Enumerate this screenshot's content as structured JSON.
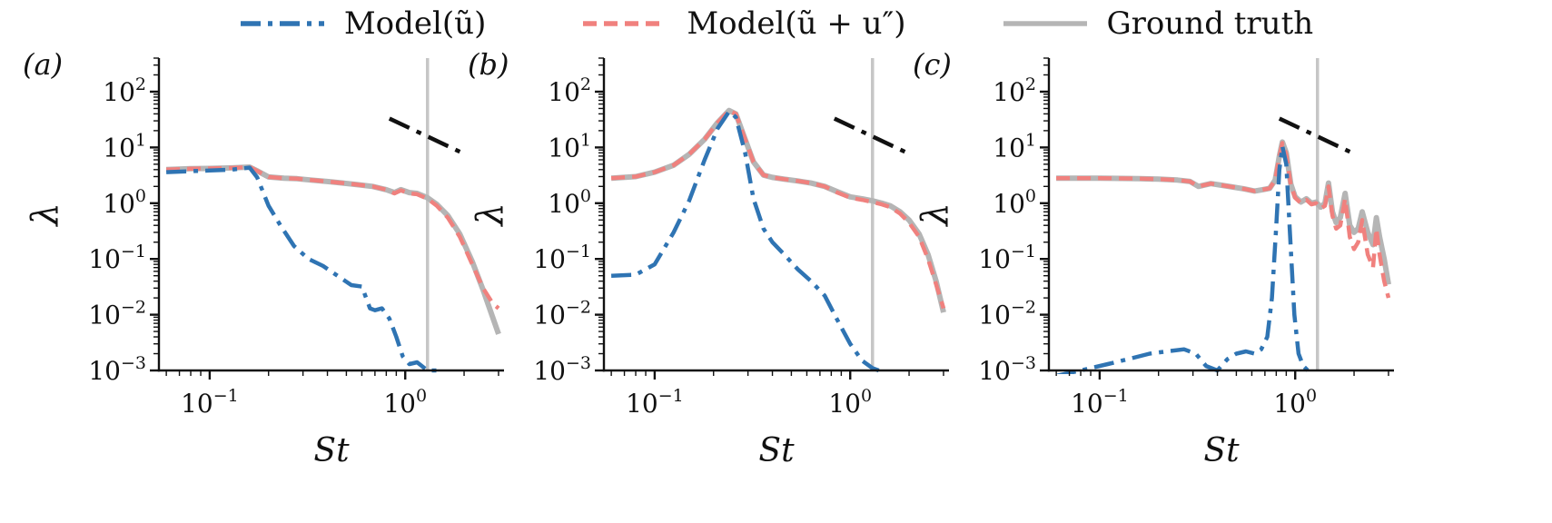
{
  "chart_data": {
    "type": "line",
    "title": "",
    "xlabel": "St",
    "ylabel": "λ",
    "x_scale": "log",
    "y_scale": "log",
    "xlim": [
      0.055,
      3.2
    ],
    "ylim": [
      0.001,
      400
    ],
    "x_major_tick_exponents": [
      -1,
      0
    ],
    "y_major_tick_exponents": [
      2,
      1,
      0,
      -1,
      -2,
      -3
    ],
    "grid": "off",
    "legend_position": "top-center",
    "vline_x": 1.3,
    "vline_color": "#c6c6c6",
    "slope_guide": {
      "x": [
        0.83,
        2.0
      ],
      "y": [
        33,
        7.7
      ],
      "color": "#111111",
      "style": "dashdot"
    },
    "legend": [
      {
        "label": "Model(ũ)",
        "color": "#2f74b3",
        "style": "dashdot"
      },
      {
        "label": "Model(ũ + u″)",
        "color": "#f0817e",
        "style": "dashed"
      },
      {
        "label": "Ground truth",
        "color": "#b5b5b5",
        "style": "solid"
      }
    ],
    "panels": [
      {
        "label": "(a)",
        "series": [
          {
            "name": "Ground truth",
            "id": "ground-truth",
            "color": "#b5b5b5",
            "style": "solid",
            "x": [
              0.06,
              0.08,
              0.1,
              0.13,
              0.16,
              0.175,
              0.2,
              0.24,
              0.28,
              0.33,
              0.4,
              0.48,
              0.57,
              0.68,
              0.8,
              0.88,
              0.95,
              1.05,
              1.15,
              1.3,
              1.45,
              1.65,
              1.9,
              2.2,
              2.5,
              2.8,
              3.0
            ],
            "y": [
              4.0,
              4.15,
              4.2,
              4.3,
              4.45,
              3.8,
              2.95,
              2.8,
              2.75,
              2.6,
              2.45,
              2.3,
              2.15,
              2.0,
              1.75,
              1.55,
              1.75,
              1.55,
              1.5,
              1.25,
              0.95,
              0.6,
              0.28,
              0.09,
              0.028,
              0.009,
              0.0045
            ]
          },
          {
            "name": "Model(ũ + u″)",
            "id": "model-full",
            "color": "#f0817e",
            "style": "dashed",
            "x": [
              0.06,
              0.08,
              0.1,
              0.13,
              0.16,
              0.175,
              0.2,
              0.24,
              0.28,
              0.33,
              0.4,
              0.48,
              0.57,
              0.68,
              0.8,
              0.88,
              0.95,
              1.05,
              1.15,
              1.3,
              1.45,
              1.65,
              1.9,
              2.2,
              2.5,
              2.8,
              3.0
            ],
            "y": [
              4.0,
              4.15,
              4.2,
              4.3,
              4.45,
              3.8,
              2.95,
              2.8,
              2.75,
              2.6,
              2.45,
              2.3,
              2.15,
              2.0,
              1.75,
              1.5,
              1.7,
              1.5,
              1.45,
              1.2,
              0.9,
              0.55,
              0.25,
              0.08,
              0.03,
              0.016,
              0.013
            ]
          },
          {
            "name": "Model(ũ)",
            "id": "model-resolved",
            "color": "#2f74b3",
            "style": "dashdot",
            "x": [
              0.06,
              0.08,
              0.1,
              0.13,
              0.16,
              0.175,
              0.2,
              0.23,
              0.27,
              0.32,
              0.38,
              0.45,
              0.53,
              0.6,
              0.66,
              0.7,
              0.76,
              0.83,
              0.9,
              0.97,
              1.05,
              1.15,
              1.3,
              1.45
            ],
            "y": [
              3.6,
              3.75,
              3.85,
              4.0,
              4.35,
              2.9,
              0.9,
              0.4,
              0.17,
              0.1,
              0.075,
              0.05,
              0.034,
              0.032,
              0.013,
              0.012,
              0.013,
              0.0085,
              0.004,
              0.0018,
              0.0013,
              0.0014,
              0.001,
              0.001
            ]
          }
        ]
      },
      {
        "label": "(b)",
        "series": [
          {
            "name": "Ground truth",
            "id": "ground-truth",
            "color": "#b5b5b5",
            "style": "solid",
            "x": [
              0.06,
              0.08,
              0.1,
              0.125,
              0.15,
              0.18,
              0.21,
              0.24,
              0.26,
              0.29,
              0.32,
              0.36,
              0.4,
              0.46,
              0.54,
              0.63,
              0.74,
              0.86,
              1.0,
              1.15,
              1.3,
              1.45,
              1.6,
              1.8,
              2.0,
              2.25,
              2.5,
              2.75,
              3.0
            ],
            "y": [
              2.8,
              3.0,
              3.6,
              4.8,
              7.5,
              14,
              28,
              46,
              40,
              14,
              5.5,
              3.2,
              2.9,
              2.7,
              2.5,
              2.3,
              2.0,
              1.6,
              1.3,
              1.2,
              1.1,
              1.0,
              0.9,
              0.7,
              0.5,
              0.28,
              0.12,
              0.04,
              0.011
            ]
          },
          {
            "name": "Model(ũ + u″)",
            "id": "model-full",
            "color": "#f0817e",
            "style": "dashed",
            "x": [
              0.06,
              0.08,
              0.1,
              0.125,
              0.15,
              0.18,
              0.21,
              0.24,
              0.26,
              0.29,
              0.32,
              0.36,
              0.4,
              0.46,
              0.54,
              0.63,
              0.74,
              0.86,
              1.0,
              1.15,
              1.3,
              1.45,
              1.6,
              1.8,
              2.0,
              2.25,
              2.5,
              2.75,
              3.0
            ],
            "y": [
              2.8,
              3.0,
              3.6,
              4.8,
              7.5,
              14,
              28,
              46,
              40,
              14,
              5.5,
              3.2,
              2.9,
              2.7,
              2.5,
              2.3,
              2.0,
              1.55,
              1.25,
              1.15,
              1.05,
              0.95,
              0.85,
              0.65,
              0.45,
              0.25,
              0.1,
              0.035,
              0.013
            ]
          },
          {
            "name": "Model(ũ)",
            "id": "model-resolved",
            "color": "#2f74b3",
            "style": "dashdot",
            "x": [
              0.06,
              0.08,
              0.1,
              0.125,
              0.15,
              0.18,
              0.21,
              0.24,
              0.26,
              0.29,
              0.32,
              0.36,
              0.4,
              0.46,
              0.54,
              0.63,
              0.74,
              0.86,
              1.0,
              1.15,
              1.3,
              1.4
            ],
            "y": [
              0.05,
              0.052,
              0.08,
              0.3,
              1.1,
              6,
              22,
              44,
              35,
              8,
              1.2,
              0.35,
              0.2,
              0.12,
              0.065,
              0.04,
              0.022,
              0.008,
              0.003,
              0.0015,
              0.0011,
              0.001
            ]
          }
        ]
      },
      {
        "label": "(c)",
        "series": [
          {
            "name": "Ground truth",
            "id": "ground-truth",
            "color": "#b5b5b5",
            "style": "solid",
            "x": [
              0.06,
              0.08,
              0.1,
              0.13,
              0.16,
              0.2,
              0.25,
              0.29,
              0.32,
              0.37,
              0.42,
              0.48,
              0.55,
              0.62,
              0.68,
              0.74,
              0.79,
              0.83,
              0.86,
              0.9,
              0.95,
              1.0,
              1.07,
              1.14,
              1.21,
              1.28,
              1.35,
              1.42,
              1.48,
              1.55,
              1.62,
              1.7,
              1.8,
              1.9,
              2.0,
              2.1,
              2.2,
              2.35,
              2.5,
              2.6,
              2.7,
              2.85,
              3.0
            ],
            "y": [
              2.8,
              2.8,
              2.8,
              2.78,
              2.75,
              2.7,
              2.6,
              2.45,
              2.0,
              2.25,
              2.1,
              1.95,
              1.8,
              1.65,
              1.75,
              1.85,
              2.6,
              7.0,
              12.5,
              8.0,
              2.2,
              1.3,
              1.05,
              1.2,
              1.0,
              1.05,
              0.85,
              1.0,
              2.3,
              0.7,
              0.45,
              0.55,
              1.5,
              0.4,
              0.3,
              0.35,
              0.7,
              0.3,
              0.18,
              0.55,
              0.25,
              0.1,
              0.035
            ]
          },
          {
            "name": "Model(ũ + u″)",
            "id": "model-full",
            "color": "#f0817e",
            "style": "dashed",
            "x": [
              0.06,
              0.08,
              0.1,
              0.13,
              0.16,
              0.2,
              0.25,
              0.29,
              0.32,
              0.37,
              0.42,
              0.48,
              0.55,
              0.62,
              0.68,
              0.74,
              0.79,
              0.83,
              0.86,
              0.9,
              0.95,
              1.0,
              1.07,
              1.14,
              1.21,
              1.28,
              1.35,
              1.42,
              1.48,
              1.55,
              1.62,
              1.7,
              1.8,
              1.9,
              2.0,
              2.1,
              2.2,
              2.35,
              2.5,
              2.6,
              2.7,
              2.85,
              3.0
            ],
            "y": [
              2.8,
              2.8,
              2.8,
              2.78,
              2.75,
              2.7,
              2.6,
              2.45,
              2.0,
              2.25,
              2.1,
              1.95,
              1.8,
              1.65,
              1.75,
              1.85,
              2.6,
              7.0,
              12.0,
              7.5,
              2.1,
              1.25,
              1.0,
              1.15,
              0.95,
              1.0,
              0.8,
              0.9,
              2.0,
              0.6,
              0.35,
              0.4,
              1.2,
              0.25,
              0.15,
              0.2,
              0.5,
              0.12,
              0.07,
              0.35,
              0.12,
              0.04,
              0.02
            ]
          },
          {
            "name": "Model(ũ)",
            "id": "model-resolved",
            "color": "#2f74b3",
            "style": "dashdot",
            "x": [
              0.06,
              0.08,
              0.11,
              0.14,
              0.18,
              0.22,
              0.27,
              0.31,
              0.35,
              0.4,
              0.45,
              0.5,
              0.56,
              0.62,
              0.67,
              0.72,
              0.76,
              0.8,
              0.83,
              0.86,
              0.9,
              0.94,
              0.99,
              1.04,
              1.1,
              1.16
            ],
            "y": [
              0.0008,
              0.001,
              0.0013,
              0.0016,
              0.002,
              0.0022,
              0.0024,
              0.002,
              0.0012,
              0.001,
              0.0016,
              0.002,
              0.0022,
              0.002,
              0.0024,
              0.004,
              0.02,
              0.4,
              4.0,
              10.5,
              5.0,
              0.3,
              0.01,
              0.002,
              0.0012,
              0.001
            ]
          }
        ]
      }
    ]
  }
}
